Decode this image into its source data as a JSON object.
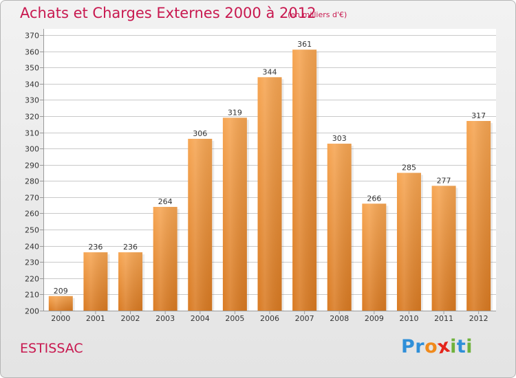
{
  "header": {
    "title": "Achats et Charges Externes 2000 à 2012",
    "unit_note": "(en milliers d'€)"
  },
  "footer": {
    "commune": "ESTISSAC",
    "brand": {
      "letters": [
        "P",
        "r",
        "o",
        "x",
        "i",
        "t",
        "i"
      ],
      "colors": [
        "#2f8fd8",
        "#2f8fd8",
        "#f08a1c",
        "#e4241b",
        "#6fb23c",
        "#2f8fd8",
        "#6fb23c"
      ]
    }
  },
  "colors": {
    "bar_light": "#f6a552",
    "bar_dark": "#d97a22",
    "grid": "#c9c9c9",
    "title": "#c8184f"
  },
  "chart_data": {
    "type": "bar",
    "title": "Achats et Charges Externes 2000 à 2012",
    "subtitle": "(en milliers d'€)",
    "xlabel": "",
    "ylabel": "",
    "categories": [
      "2000",
      "2001",
      "2002",
      "2003",
      "2004",
      "2005",
      "2006",
      "2007",
      "2008",
      "2009",
      "2010",
      "2011",
      "2012"
    ],
    "values": [
      209,
      236,
      236,
      264,
      306,
      319,
      344,
      361,
      303,
      266,
      285,
      277,
      317
    ],
    "ylim": [
      200,
      370
    ],
    "yticks": [
      200,
      210,
      220,
      230,
      240,
      250,
      260,
      270,
      280,
      290,
      300,
      310,
      320,
      330,
      340,
      350,
      360,
      370
    ],
    "grid": true,
    "legend": "none"
  }
}
